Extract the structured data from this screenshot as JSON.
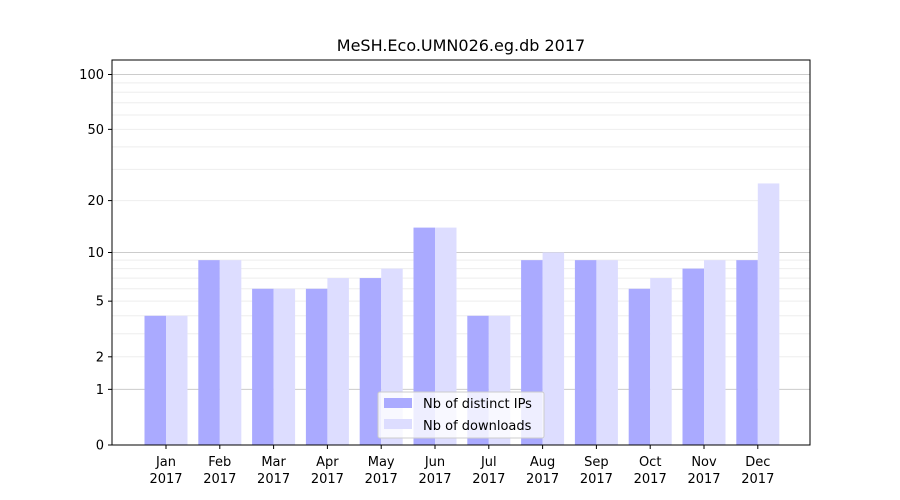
{
  "chart_data": {
    "type": "bar",
    "title": "MeSH.Eco.UMN026.eg.db 2017",
    "xlabel": "",
    "ylabel": "",
    "y_scale": "log(1+y)",
    "ylim": [
      0,
      120
    ],
    "y_ticks": [
      0,
      1,
      2,
      5,
      10,
      20,
      50,
      100
    ],
    "grid": true,
    "legend_position": "bottom-center",
    "categories": [
      [
        "Jan",
        "2017"
      ],
      [
        "Feb",
        "2017"
      ],
      [
        "Mar",
        "2017"
      ],
      [
        "Apr",
        "2017"
      ],
      [
        "May",
        "2017"
      ],
      [
        "Jun",
        "2017"
      ],
      [
        "Jul",
        "2017"
      ],
      [
        "Aug",
        "2017"
      ],
      [
        "Sep",
        "2017"
      ],
      [
        "Oct",
        "2017"
      ],
      [
        "Nov",
        "2017"
      ],
      [
        "Dec",
        "2017"
      ]
    ],
    "series": [
      {
        "name": "Nb of distinct IPs",
        "color": "#aaaaff",
        "values": [
          4,
          9,
          6,
          6,
          7,
          14,
          4,
          9,
          9,
          6,
          8,
          9
        ]
      },
      {
        "name": "Nb of downloads",
        "color": "#ddddff",
        "values": [
          4,
          9,
          6,
          7,
          8,
          14,
          4,
          10,
          9,
          7,
          9,
          25
        ]
      }
    ]
  }
}
